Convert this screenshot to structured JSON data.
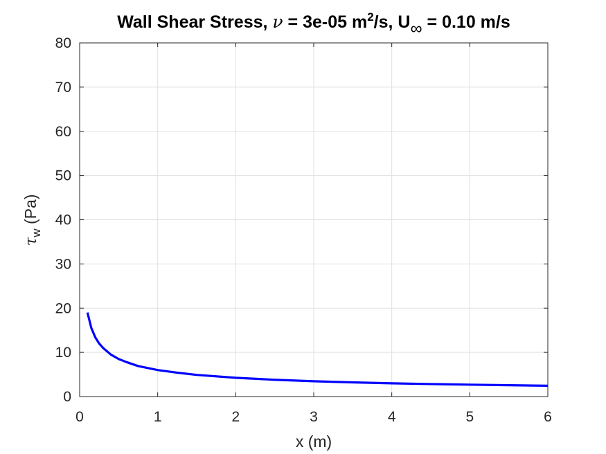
{
  "chart_data": {
    "type": "line",
    "title": {
      "part1": "Wall Shear Stress, ",
      "nu_symbol": "ν",
      "part2": " = 3e-05 m",
      "sup": "2",
      "part3": "/s, U",
      "sub": "∞",
      "part4": " = 0.10 m/s"
    },
    "xlabel": "x (m)",
    "ylabel": {
      "symbol": "τ",
      "sub": "w",
      "unit": " (Pa)"
    },
    "xlim": [
      0,
      6
    ],
    "ylim": [
      0,
      80
    ],
    "xticks": [
      "0",
      "1",
      "2",
      "3",
      "4",
      "5",
      "6"
    ],
    "yticks": [
      "0",
      "10",
      "20",
      "30",
      "40",
      "50",
      "60",
      "70",
      "80"
    ],
    "grid": true,
    "series": [
      {
        "color": "#0000ff",
        "x": [
          0.1,
          0.15,
          0.2,
          0.25,
          0.3,
          0.4,
          0.5,
          0.6,
          0.75,
          1.0,
          1.25,
          1.5,
          2.0,
          2.5,
          3.0,
          3.5,
          4.0,
          4.5,
          5.0,
          5.5,
          6.0
        ],
        "y": [
          19.0,
          15.5,
          13.4,
          12.0,
          11.0,
          9.5,
          8.5,
          7.8,
          6.9,
          6.0,
          5.4,
          4.9,
          4.25,
          3.8,
          3.47,
          3.21,
          3.0,
          2.83,
          2.69,
          2.56,
          2.45
        ]
      }
    ]
  }
}
